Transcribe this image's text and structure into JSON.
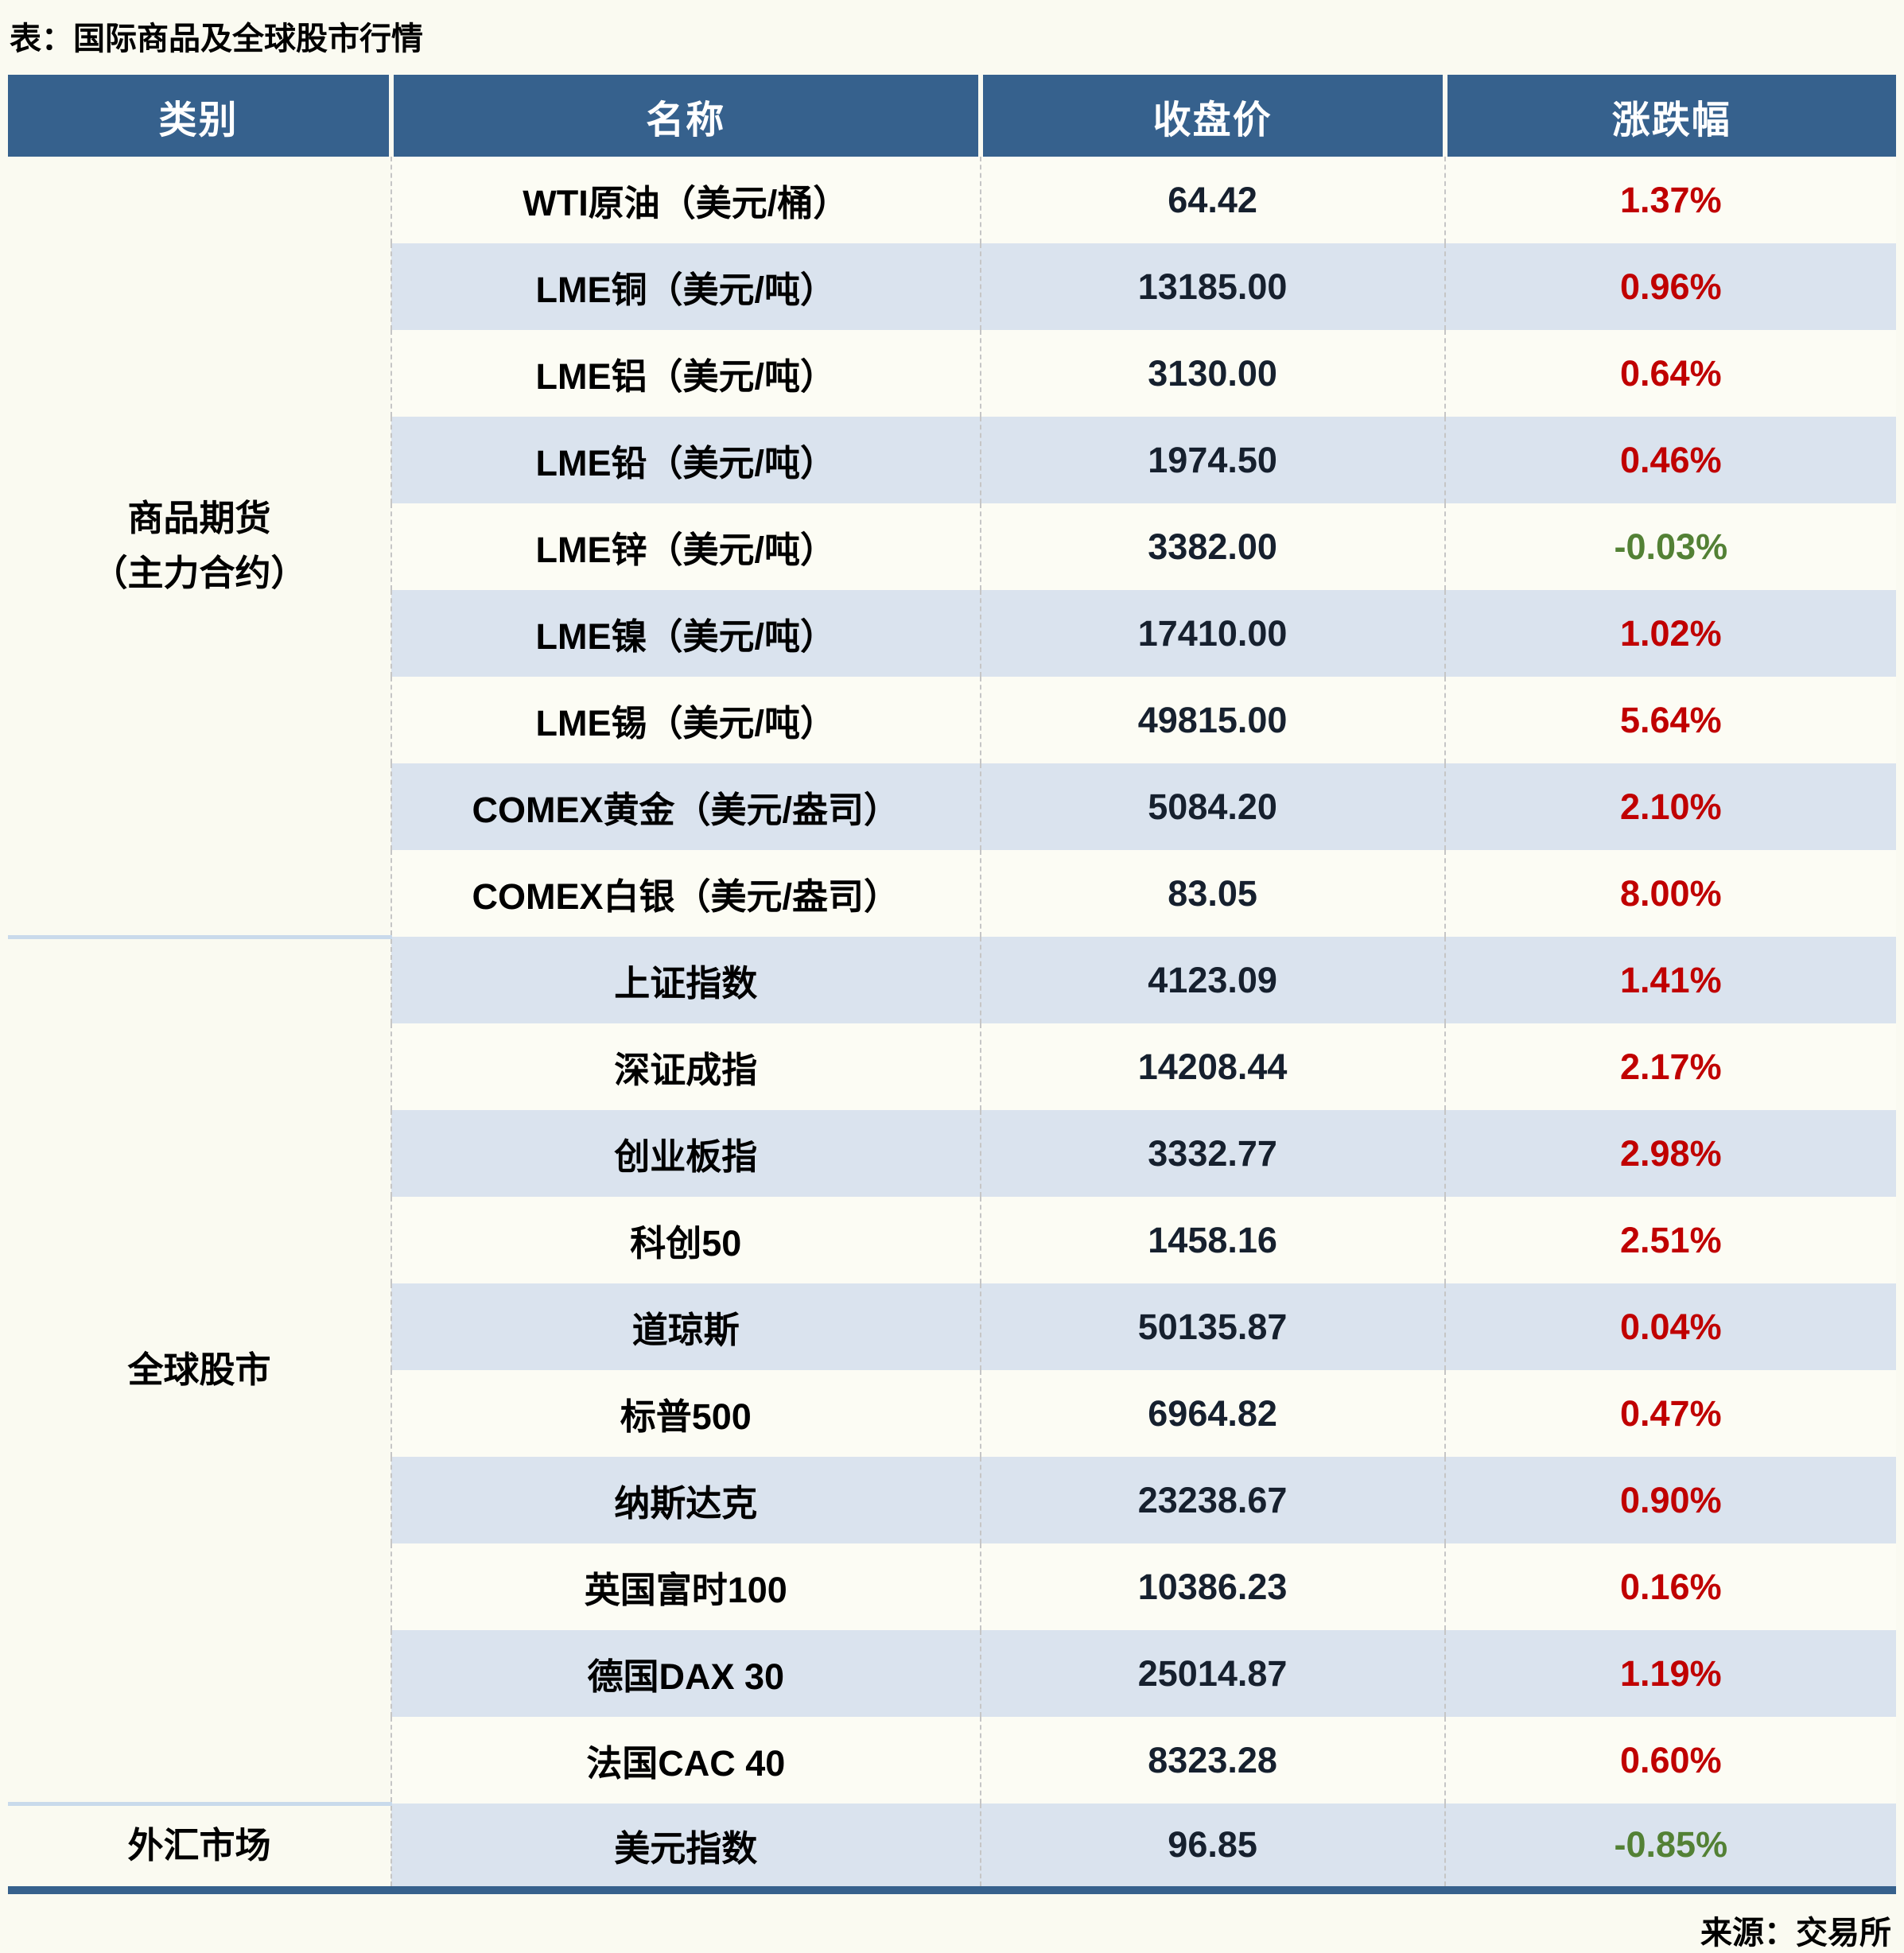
{
  "title": "表：国际商品及全球股市行情",
  "source_note": "来源：交易所",
  "colors": {
    "header_bg": "#36618D",
    "row_shade": "#DAE3EE",
    "row_light": "#FCFCF4",
    "page_bg": "#FAFAF1",
    "up_red": "#C00000",
    "down_green": "#538135",
    "section_divider": "#C9DAEB",
    "bottom_border": "#36618D"
  },
  "chart_data": {
    "type": "table",
    "title": "表：国际商品及全球股市行情",
    "columns": [
      "类别",
      "名称",
      "收盘价",
      "涨跌幅"
    ],
    "sections": [
      {
        "category": "商品期货（主力合约）",
        "category_lines": [
          "商品期货",
          "（主力合约）"
        ],
        "rows": [
          {
            "name": "WTI原油（美元/桶）",
            "close": "64.42",
            "change": "1.37%"
          },
          {
            "name": "LME铜（美元/吨）",
            "close": "13185.00",
            "change": "0.96%"
          },
          {
            "name": "LME铝（美元/吨）",
            "close": "3130.00",
            "change": "0.64%"
          },
          {
            "name": "LME铅（美元/吨）",
            "close": "1974.50",
            "change": "0.46%"
          },
          {
            "name": "LME锌（美元/吨）",
            "close": "3382.00",
            "change": "-0.03%"
          },
          {
            "name": "LME镍（美元/吨）",
            "close": "17410.00",
            "change": "1.02%"
          },
          {
            "name": "LME锡（美元/吨）",
            "close": "49815.00",
            "change": "5.64%"
          },
          {
            "name": "COMEX黄金（美元/盎司）",
            "close": "5084.20",
            "change": "2.10%"
          },
          {
            "name": "COMEX白银（美元/盎司）",
            "close": "83.05",
            "change": "8.00%"
          }
        ]
      },
      {
        "category": "全球股市",
        "category_lines": [
          "全球股市"
        ],
        "rows": [
          {
            "name": "上证指数",
            "close": "4123.09",
            "change": "1.41%"
          },
          {
            "name": "深证成指",
            "close": "14208.44",
            "change": "2.17%"
          },
          {
            "name": "创业板指",
            "close": "3332.77",
            "change": "2.98%"
          },
          {
            "name": "科创50",
            "close": "1458.16",
            "change": "2.51%"
          },
          {
            "name": "道琼斯",
            "close": "50135.87",
            "change": "0.04%"
          },
          {
            "name": "标普500",
            "close": "6964.82",
            "change": "0.47%"
          },
          {
            "name": "纳斯达克",
            "close": "23238.67",
            "change": "0.90%"
          },
          {
            "name": "英国富时100",
            "close": "10386.23",
            "change": "0.16%"
          },
          {
            "name": "德国DAX 30",
            "close": "25014.87",
            "change": "1.19%"
          },
          {
            "name": "法国CAC 40",
            "close": "8323.28",
            "change": "0.60%"
          }
        ]
      },
      {
        "category": "外汇市场",
        "category_lines": [
          "外汇市场"
        ],
        "rows": [
          {
            "name": "美元指数",
            "close": "96.85",
            "change": "-0.85%"
          }
        ]
      }
    ]
  }
}
